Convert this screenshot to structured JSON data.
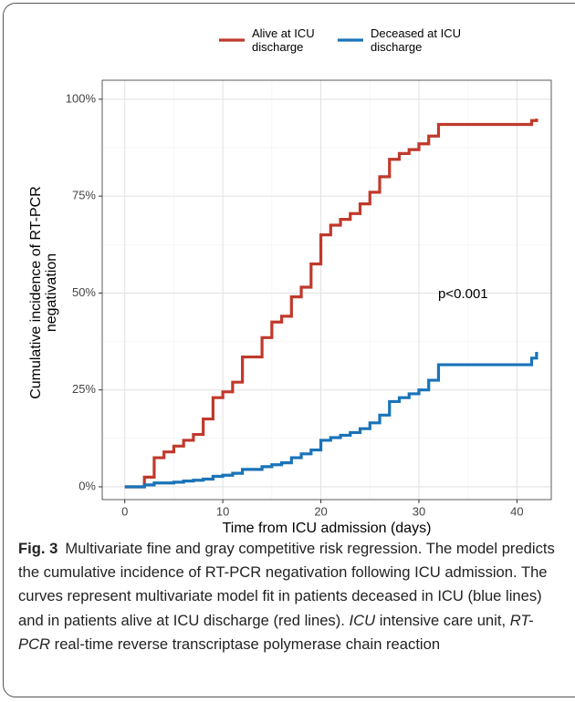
{
  "chart_data": {
    "type": "line",
    "x_label": "Time from ICU admission (days)",
    "y_label": "Cumulative incidence of RT-PCR negativation",
    "xlim": [
      -2.3,
      43.5
    ],
    "ylim": [
      -3.3,
      104.9
    ],
    "xticks": [
      0,
      10,
      20,
      30,
      40
    ],
    "yticks": [
      {
        "value": 0,
        "label": "0%"
      },
      {
        "value": 25,
        "label": "25%"
      },
      {
        "value": 50,
        "label": "50%"
      },
      {
        "value": 75,
        "label": "75%"
      },
      {
        "value": 100,
        "label": "100%"
      }
    ],
    "x_minor_grid": [
      5,
      15,
      25,
      35
    ],
    "y_minor_grid": [
      12.5,
      37.5,
      62.5,
      87.5
    ],
    "grid": true,
    "legend": "top",
    "annotation": "p<0.001",
    "series": [
      {
        "name": "Alive at ICU discharge",
        "color": "#c0392b",
        "x": [
          0,
          2,
          2,
          3,
          3,
          4,
          4,
          5,
          5,
          6,
          6,
          7,
          7,
          8,
          8,
          9,
          9,
          10,
          10,
          11,
          11,
          12,
          12,
          14,
          14,
          15,
          15,
          16,
          16,
          17,
          17,
          18,
          18,
          19,
          19,
          20,
          20,
          21,
          21,
          22,
          22,
          23,
          23,
          24,
          24,
          25,
          25,
          26,
          26,
          27,
          27,
          28,
          28,
          29,
          29,
          30,
          30,
          31,
          31,
          32,
          32,
          41.5,
          41.5,
          42,
          42
        ],
        "values": [
          0,
          0,
          2.5,
          2.5,
          7.5,
          7.5,
          9,
          9,
          10.5,
          10.5,
          12,
          12,
          13.5,
          13.5,
          17.5,
          17.5,
          23,
          23,
          24.5,
          24.5,
          27,
          27,
          33.5,
          33.5,
          38.5,
          38.5,
          42.5,
          42.5,
          44,
          44,
          49,
          49,
          51.5,
          51.5,
          57.5,
          57.5,
          65,
          65,
          67.5,
          67.5,
          69,
          69,
          70.5,
          70.5,
          73,
          73,
          76,
          76,
          80,
          80,
          84.5,
          84.5,
          86,
          86,
          87,
          87,
          88.5,
          88.5,
          90.5,
          90.5,
          93.5,
          93.5,
          94.5,
          94.5,
          95
        ]
      },
      {
        "name": "Deceased at ICU discharge",
        "color": "#1a73b8",
        "x": [
          0,
          2,
          2,
          3,
          3,
          5,
          5,
          6,
          6,
          7,
          7,
          8,
          8,
          9,
          9,
          10,
          10,
          11,
          11,
          12,
          12,
          14,
          14,
          15,
          15,
          16,
          16,
          17,
          17,
          18,
          18,
          19,
          19,
          20,
          20,
          21,
          21,
          22,
          22,
          23,
          23,
          24,
          24,
          25,
          25,
          26,
          26,
          27,
          27,
          28,
          28,
          29,
          29,
          30,
          30,
          31,
          31,
          32,
          32,
          41.5,
          41.5,
          42,
          42
        ],
        "values": [
          0,
          0,
          0.5,
          0.5,
          1,
          1,
          1.2,
          1.2,
          1.5,
          1.5,
          1.7,
          1.7,
          2,
          2,
          2.7,
          2.7,
          3,
          3,
          3.5,
          3.5,
          4.5,
          4.5,
          5.2,
          5.2,
          5.7,
          5.7,
          6.2,
          6.2,
          7.5,
          7.5,
          8.5,
          8.5,
          9.5,
          9.5,
          12,
          12,
          12.7,
          12.7,
          13.3,
          13.3,
          14,
          14,
          15,
          15,
          16.5,
          16.5,
          18.5,
          18.5,
          22,
          22,
          23,
          23,
          24,
          24,
          25,
          25,
          27.5,
          27.5,
          31.5,
          31.5,
          33.2,
          33.2,
          34.8
        ]
      }
    ]
  },
  "caption": {
    "label": "Fig. 3",
    "text": "Multivariate fine and gray competitive risk regression. The model predicts the cumulative incidence of RT-PCR negativation following ICU admission. The curves represent multivariate model fit in patients deceased in ICU (blue lines) and in patients alive at ICU discharge (red lines).",
    "abbreviations": [
      {
        "term": "ICU",
        "definition": "intensive care unit,"
      },
      {
        "term": "RT-PCR",
        "definition": "real-time reverse transcriptase polymerase chain reaction"
      }
    ]
  }
}
